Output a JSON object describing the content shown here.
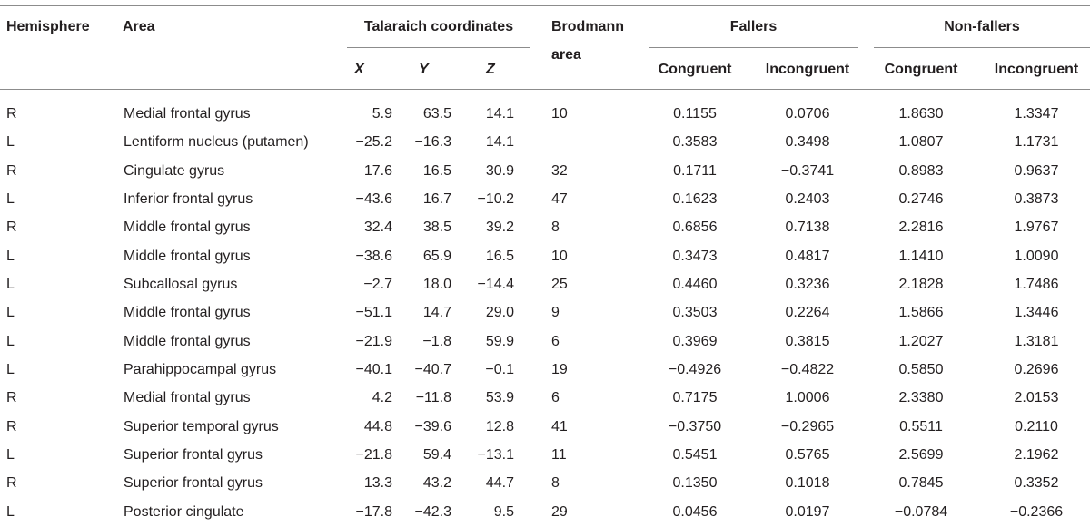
{
  "headers": {
    "hemisphere": "Hemisphere",
    "area": "Area",
    "talairach": "Talaraich coordinates",
    "x": "X",
    "y": "Y",
    "z": "Z",
    "brodmann_line1": "Brodmann",
    "brodmann_line2": "area",
    "fallers": "Fallers",
    "non_fallers": "Non-fallers",
    "congruent": "Congruent",
    "incongruent": "Incongruent"
  },
  "rows": [
    {
      "hemisphere": "R",
      "area": "Medial frontal gyrus",
      "x": "5.9",
      "y": "63.5",
      "z": "14.1",
      "brodmann": "10",
      "f_con": "0.1155",
      "f_inc": "0.0706",
      "n_con": "1.8630",
      "n_inc": "1.3347"
    },
    {
      "hemisphere": "L",
      "area": "Lentiform nucleus (putamen)",
      "x": "−25.2",
      "y": "−16.3",
      "z": "14.1",
      "brodmann": "",
      "f_con": "0.3583",
      "f_inc": "0.3498",
      "n_con": "1.0807",
      "n_inc": "1.1731"
    },
    {
      "hemisphere": "R",
      "area": "Cingulate gyrus",
      "x": "17.6",
      "y": "16.5",
      "z": "30.9",
      "brodmann": "32",
      "f_con": "0.1711",
      "f_inc": "−0.3741",
      "n_con": "0.8983",
      "n_inc": "0.9637"
    },
    {
      "hemisphere": "L",
      "area": "Inferior frontal gyrus",
      "x": "−43.6",
      "y": "16.7",
      "z": "−10.2",
      "brodmann": "47",
      "f_con": "0.1623",
      "f_inc": "0.2403",
      "n_con": "0.2746",
      "n_inc": "0.3873"
    },
    {
      "hemisphere": "R",
      "area": "Middle frontal gyrus",
      "x": "32.4",
      "y": "38.5",
      "z": "39.2",
      "brodmann": "8",
      "f_con": "0.6856",
      "f_inc": "0.7138",
      "n_con": "2.2816",
      "n_inc": "1.9767"
    },
    {
      "hemisphere": "L",
      "area": "Middle frontal gyrus",
      "x": "−38.6",
      "y": "65.9",
      "z": "16.5",
      "brodmann": "10",
      "f_con": "0.3473",
      "f_inc": "0.4817",
      "n_con": "1.1410",
      "n_inc": "1.0090"
    },
    {
      "hemisphere": "L",
      "area": "Subcallosal gyrus",
      "x": "−2.7",
      "y": "18.0",
      "z": "−14.4",
      "brodmann": "25",
      "f_con": "0.4460",
      "f_inc": "0.3236",
      "n_con": "2.1828",
      "n_inc": "1.7486"
    },
    {
      "hemisphere": "L",
      "area": "Middle frontal gyrus",
      "x": "−51.1",
      "y": "14.7",
      "z": "29.0",
      "brodmann": "9",
      "f_con": "0.3503",
      "f_inc": "0.2264",
      "n_con": "1.5866",
      "n_inc": "1.3446"
    },
    {
      "hemisphere": "L",
      "area": "Middle frontal gyrus",
      "x": "−21.9",
      "y": "−1.8",
      "z": "59.9",
      "brodmann": "6",
      "f_con": "0.3969",
      "f_inc": "0.3815",
      "n_con": "1.2027",
      "n_inc": "1.3181"
    },
    {
      "hemisphere": "L",
      "area": "Parahippocampal gyrus",
      "x": "−40.1",
      "y": "−40.7",
      "z": "−0.1",
      "brodmann": "19",
      "f_con": "−0.4926",
      "f_inc": "−0.4822",
      "n_con": "0.5850",
      "n_inc": "0.2696"
    },
    {
      "hemisphere": "R",
      "area": "Medial frontal gyrus",
      "x": "4.2",
      "y": "−11.8",
      "z": "53.9",
      "brodmann": "6",
      "f_con": "0.7175",
      "f_inc": "1.0006",
      "n_con": "2.3380",
      "n_inc": "2.0153"
    },
    {
      "hemisphere": "R",
      "area": "Superior temporal gyrus",
      "x": "44.8",
      "y": "−39.6",
      "z": "12.8",
      "brodmann": "41",
      "f_con": "−0.3750",
      "f_inc": "−0.2965",
      "n_con": "0.5511",
      "n_inc": "0.2110"
    },
    {
      "hemisphere": "L",
      "area": "Superior frontal gyrus",
      "x": "−21.8",
      "y": "59.4",
      "z": "−13.1",
      "brodmann": "11",
      "f_con": "0.5451",
      "f_inc": "0.5765",
      "n_con": "2.5699",
      "n_inc": "2.1962"
    },
    {
      "hemisphere": "R",
      "area": "Superior frontal gyrus",
      "x": "13.3",
      "y": "43.2",
      "z": "44.7",
      "brodmann": "8",
      "f_con": "0.1350",
      "f_inc": "0.1018",
      "n_con": "0.7845",
      "n_inc": "0.3352"
    },
    {
      "hemisphere": "L",
      "area": "Posterior cingulate",
      "x": "−17.8",
      "y": "−42.3",
      "z": "9.5",
      "brodmann": "29",
      "f_con": "0.0456",
      "f_inc": "0.0197",
      "n_con": "−0.0784",
      "n_inc": "−0.2366"
    }
  ]
}
